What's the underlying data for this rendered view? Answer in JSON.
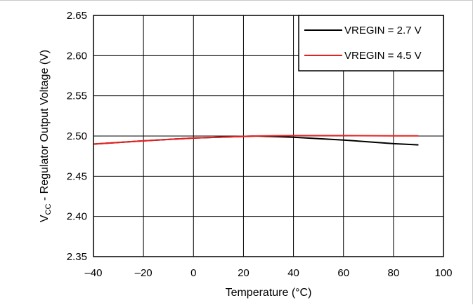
{
  "chart_data": {
    "type": "line",
    "xlabel": "Temperature (°C)",
    "ylabel_main": "V",
    "ylabel_sub": "CC",
    "ylabel_rest": " - Regulator Output Voltage (V)",
    "xlim": [
      -40,
      100
    ],
    "ylim": [
      2.35,
      2.65
    ],
    "x_ticks": [
      -40,
      -20,
      0,
      20,
      40,
      60,
      80,
      100
    ],
    "x_tick_labels": [
      "–40",
      "–20",
      "0",
      "20",
      "40",
      "60",
      "80",
      "100"
    ],
    "y_ticks": [
      2.35,
      2.4,
      2.45,
      2.5,
      2.55,
      2.6,
      2.65
    ],
    "y_tick_labels": [
      "2.35",
      "2.40",
      "2.45",
      "2.50",
      "2.55",
      "2.60",
      "2.65"
    ],
    "grid": true,
    "legend_position": "top-right",
    "series": [
      {
        "name": "VREGIN = 2.7 V",
        "color": "#000000",
        "x": [
          -40,
          -20,
          0,
          25,
          40,
          60,
          80,
          90
        ],
        "y": [
          2.49,
          2.494,
          2.4975,
          2.5,
          2.4985,
          2.495,
          2.4905,
          2.489
        ]
      },
      {
        "name": "VREGIN = 4.5 V",
        "color": "#e8201e",
        "x": [
          -40,
          -20,
          0,
          25,
          40,
          60,
          80,
          90
        ],
        "y": [
          2.49,
          2.494,
          2.4975,
          2.5,
          2.5005,
          2.5005,
          2.5002,
          2.5002
        ]
      }
    ]
  }
}
